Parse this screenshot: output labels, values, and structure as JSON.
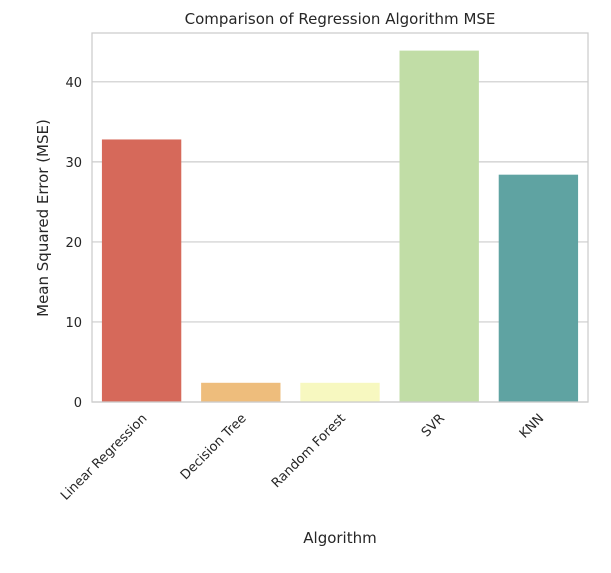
{
  "chart_data": {
    "type": "bar",
    "title": "Comparison of Regression Algorithm MSE",
    "xlabel": "Algorithm",
    "ylabel": "Mean Squared Error (MSE)",
    "categories": [
      "Linear Regression",
      "Decision Tree",
      "Random Forest",
      "SVR",
      "KNN"
    ],
    "values": [
      32.8,
      2.4,
      2.4,
      43.9,
      28.4
    ],
    "colors": [
      "#d6695a",
      "#eebd7c",
      "#f7f8c0",
      "#c1ddа6",
      "#5fa3a2"
    ],
    "ylim": [
      0,
      46.1
    ],
    "yticks": [
      0,
      10,
      20,
      30,
      40
    ],
    "grid": "y",
    "legend": "none"
  }
}
